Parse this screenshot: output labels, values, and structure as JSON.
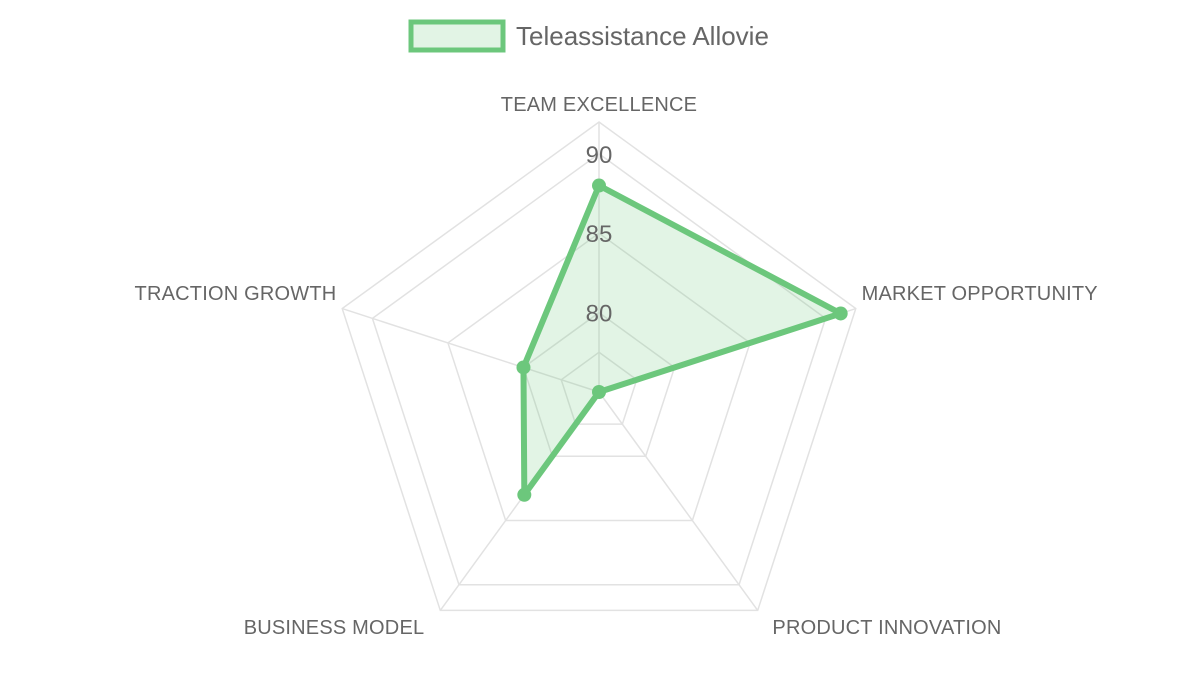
{
  "chart_data": {
    "type": "radar",
    "categories": [
      "TEAM EXCELLENCE",
      "MARKET OPPORTUNITY",
      "PRODUCT INNOVATION",
      "BUSINESS MODEL",
      "TRACTION GROWTH"
    ],
    "series": [
      {
        "name": "Teleassistance Allovie",
        "values": [
          88,
          91,
          75,
          83,
          80
        ]
      }
    ],
    "ticks": [
      "80",
      "85",
      "90"
    ],
    "tick_values": [
      80,
      85,
      90
    ],
    "rlim": [
      75,
      92
    ],
    "legend": "top",
    "grid": true,
    "colors": {
      "line": "#6cc77c",
      "fill": "rgba(108,199,124,0.2)",
      "grid": "#e2e2e2",
      "text": "#666666"
    }
  }
}
